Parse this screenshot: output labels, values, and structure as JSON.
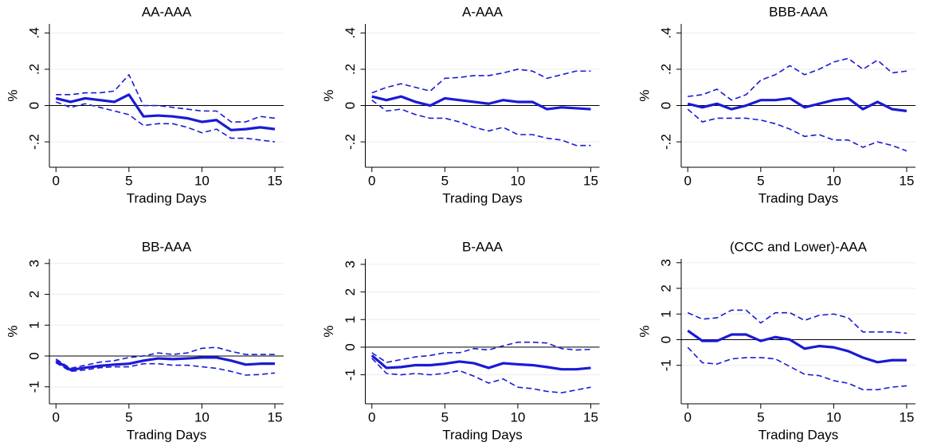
{
  "chart_data": [
    {
      "type": "line",
      "title": "AA-AAA",
      "xlabel": "Trading Days",
      "ylabel": "%",
      "x": [
        0,
        1,
        2,
        3,
        4,
        5,
        6,
        7,
        8,
        9,
        10,
        11,
        12,
        13,
        14,
        15
      ],
      "series": [
        {
          "color": "#1a1ad6",
          "style": "solid",
          "values": [
            0.04,
            0.02,
            0.04,
            0.03,
            0.02,
            0.06,
            -0.06,
            -0.055,
            -0.06,
            -0.07,
            -0.09,
            -0.08,
            -0.135,
            -0.13,
            -0.12,
            -0.13
          ]
        },
        {
          "color": "#1a1ad6",
          "style": "dashed",
          "values": [
            0.06,
            0.06,
            0.07,
            0.07,
            0.08,
            0.17,
            0.0,
            0.0,
            -0.01,
            -0.02,
            -0.03,
            -0.03,
            -0.09,
            -0.09,
            -0.06,
            -0.07
          ]
        },
        {
          "color": "#1a1ad6",
          "style": "dashed",
          "values": [
            0.02,
            -0.01,
            0.01,
            -0.01,
            -0.03,
            -0.05,
            -0.11,
            -0.1,
            -0.1,
            -0.12,
            -0.15,
            -0.13,
            -0.18,
            -0.18,
            -0.19,
            -0.2
          ]
        }
      ],
      "xlim": [
        -0.45,
        15.6
      ],
      "xticks": [
        0,
        5,
        10,
        15
      ],
      "ylim": [
        -0.34,
        0.45
      ],
      "yticks": [
        {
          "value": -0.2,
          "label": "-.2"
        },
        0,
        {
          "value": 0.2,
          "label": ".2"
        },
        {
          "value": 0.4,
          "label": ".4"
        }
      ],
      "grid": true,
      "hline": 0
    },
    {
      "type": "line",
      "title": "A-AAA",
      "xlabel": "Trading Days",
      "ylabel": "%",
      "x": [
        0,
        1,
        2,
        3,
        4,
        5,
        6,
        7,
        8,
        9,
        10,
        11,
        12,
        13,
        14,
        15
      ],
      "series": [
        {
          "color": "#1a1ad6",
          "style": "solid",
          "values": [
            0.05,
            0.03,
            0.05,
            0.02,
            0.0,
            0.04,
            0.03,
            0.02,
            0.01,
            0.03,
            0.02,
            0.02,
            -0.02,
            -0.01,
            -0.015,
            -0.02
          ]
        },
        {
          "color": "#1a1ad6",
          "style": "dashed",
          "values": [
            0.07,
            0.1,
            0.12,
            0.1,
            0.08,
            0.15,
            0.155,
            0.165,
            0.165,
            0.18,
            0.2,
            0.19,
            0.15,
            0.17,
            0.19,
            0.19
          ]
        },
        {
          "color": "#1a1ad6",
          "style": "dashed",
          "values": [
            0.03,
            -0.03,
            -0.02,
            -0.05,
            -0.07,
            -0.07,
            -0.09,
            -0.12,
            -0.14,
            -0.12,
            -0.16,
            -0.16,
            -0.18,
            -0.19,
            -0.22,
            -0.22
          ]
        }
      ],
      "xlim": [
        -0.45,
        15.6
      ],
      "xticks": [
        0,
        5,
        10,
        15
      ],
      "ylim": [
        -0.34,
        0.45
      ],
      "yticks": [
        {
          "value": -0.2,
          "label": "-.2"
        },
        0,
        {
          "value": 0.2,
          "label": ".2"
        },
        {
          "value": 0.4,
          "label": ".4"
        }
      ],
      "grid": true,
      "hline": 0
    },
    {
      "type": "line",
      "title": "BBB-AAA",
      "xlabel": "Trading Days",
      "ylabel": "%",
      "x": [
        0,
        1,
        2,
        3,
        4,
        5,
        6,
        7,
        8,
        9,
        10,
        11,
        12,
        13,
        14,
        15
      ],
      "series": [
        {
          "color": "#1a1ad6",
          "style": "solid",
          "values": [
            0.01,
            -0.01,
            0.01,
            -0.02,
            0.0,
            0.03,
            0.03,
            0.04,
            -0.01,
            0.01,
            0.03,
            0.04,
            -0.02,
            0.02,
            -0.02,
            -0.03
          ]
        },
        {
          "color": "#1a1ad6",
          "style": "dashed",
          "values": [
            0.05,
            0.06,
            0.09,
            0.03,
            0.06,
            0.14,
            0.17,
            0.22,
            0.17,
            0.2,
            0.24,
            0.26,
            0.2,
            0.25,
            0.18,
            0.19
          ]
        },
        {
          "color": "#1a1ad6",
          "style": "dashed",
          "values": [
            -0.02,
            -0.09,
            -0.07,
            -0.07,
            -0.07,
            -0.08,
            -0.1,
            -0.13,
            -0.17,
            -0.16,
            -0.19,
            -0.19,
            -0.23,
            -0.2,
            -0.22,
            -0.25
          ]
        }
      ],
      "xlim": [
        -0.45,
        15.6
      ],
      "xticks": [
        0,
        5,
        10,
        15
      ],
      "ylim": [
        -0.34,
        0.45
      ],
      "yticks": [
        {
          "value": -0.2,
          "label": "-.2"
        },
        0,
        {
          "value": 0.2,
          "label": ".2"
        },
        {
          "value": 0.4,
          "label": ".4"
        }
      ],
      "grid": true,
      "hline": 0
    },
    {
      "type": "line",
      "title": "BB-AAA",
      "xlabel": "Trading Days",
      "ylabel": "%",
      "x": [
        0,
        1,
        2,
        3,
        4,
        5,
        6,
        7,
        8,
        9,
        10,
        11,
        12,
        13,
        14,
        15
      ],
      "series": [
        {
          "color": "#1a1ad6",
          "style": "solid",
          "values": [
            -0.15,
            -0.45,
            -0.38,
            -0.32,
            -0.28,
            -0.25,
            -0.15,
            -0.08,
            -0.1,
            -0.08,
            -0.05,
            -0.05,
            -0.15,
            -0.28,
            -0.25,
            -0.25
          ]
        },
        {
          "color": "#1a1ad6",
          "style": "dashed",
          "values": [
            -0.1,
            -0.4,
            -0.3,
            -0.2,
            -0.15,
            -0.05,
            0.0,
            0.1,
            0.05,
            0.1,
            0.25,
            0.28,
            0.15,
            0.05,
            0.05,
            0.05
          ]
        },
        {
          "color": "#1a1ad6",
          "style": "dashed",
          "values": [
            -0.22,
            -0.5,
            -0.45,
            -0.38,
            -0.35,
            -0.35,
            -0.25,
            -0.25,
            -0.3,
            -0.3,
            -0.35,
            -0.4,
            -0.5,
            -0.62,
            -0.6,
            -0.55
          ]
        }
      ],
      "xlim": [
        -0.45,
        15.6
      ],
      "xticks": [
        0,
        5,
        10,
        15
      ],
      "ylim": [
        -1.55,
        3.15
      ],
      "yticks": [
        -1,
        0,
        1,
        2,
        3
      ],
      "grid": true,
      "hline": 0
    },
    {
      "type": "line",
      "title": "B-AAA",
      "xlabel": "Trading Days",
      "ylabel": "%",
      "x": [
        0,
        1,
        2,
        3,
        4,
        5,
        6,
        7,
        8,
        9,
        10,
        11,
        12,
        13,
        14,
        15
      ],
      "series": [
        {
          "color": "#1a1ad6",
          "style": "solid",
          "values": [
            -0.3,
            -0.75,
            -0.72,
            -0.65,
            -0.65,
            -0.6,
            -0.52,
            -0.58,
            -0.75,
            -0.58,
            -0.62,
            -0.65,
            -0.72,
            -0.8,
            -0.8,
            -0.75
          ]
        },
        {
          "color": "#1a1ad6",
          "style": "dashed",
          "values": [
            -0.2,
            -0.55,
            -0.45,
            -0.35,
            -0.3,
            -0.2,
            -0.2,
            -0.05,
            -0.1,
            0.05,
            0.18,
            0.18,
            0.15,
            -0.05,
            -0.1,
            -0.08
          ]
        },
        {
          "color": "#1a1ad6",
          "style": "dashed",
          "values": [
            -0.4,
            -0.95,
            -1.0,
            -0.95,
            -1.0,
            -0.95,
            -0.85,
            -1.05,
            -1.3,
            -1.15,
            -1.45,
            -1.5,
            -1.6,
            -1.65,
            -1.55,
            -1.45
          ]
        }
      ],
      "xlim": [
        -0.45,
        15.6
      ],
      "xticks": [
        0,
        5,
        10,
        15
      ],
      "ylim": [
        -2.05,
        3.2
      ],
      "yticks": [
        -1,
        0,
        1,
        2,
        3
      ],
      "grid": true,
      "hline": 0
    },
    {
      "type": "line",
      "title": "(CCC and Lower)-AAA",
      "xlabel": "Trading Days",
      "ylabel": "%",
      "x": [
        0,
        1,
        2,
        3,
        4,
        5,
        6,
        7,
        8,
        9,
        10,
        11,
        12,
        13,
        14,
        15
      ],
      "series": [
        {
          "color": "#1a1ad6",
          "style": "solid",
          "values": [
            0.35,
            -0.05,
            -0.05,
            0.2,
            0.2,
            -0.05,
            0.1,
            0.0,
            -0.35,
            -0.25,
            -0.3,
            -0.45,
            -0.7,
            -0.88,
            -0.8,
            -0.8
          ]
        },
        {
          "color": "#1a1ad6",
          "style": "dashed",
          "values": [
            1.05,
            0.8,
            0.85,
            1.15,
            1.15,
            0.65,
            1.05,
            1.05,
            0.75,
            0.95,
            1.0,
            0.85,
            0.3,
            0.3,
            0.3,
            0.25
          ]
        },
        {
          "color": "#1a1ad6",
          "style": "dashed",
          "values": [
            -0.3,
            -0.9,
            -0.95,
            -0.75,
            -0.7,
            -0.7,
            -0.75,
            -1.05,
            -1.35,
            -1.4,
            -1.6,
            -1.7,
            -1.95,
            -1.95,
            -1.85,
            -1.8
          ]
        }
      ],
      "xlim": [
        -0.45,
        15.6
      ],
      "xticks": [
        0,
        5,
        10,
        15
      ],
      "ylim": [
        -2.5,
        3.15
      ],
      "yticks": [
        -1,
        0,
        1,
        2,
        3
      ],
      "grid": true,
      "hline": 0
    }
  ]
}
